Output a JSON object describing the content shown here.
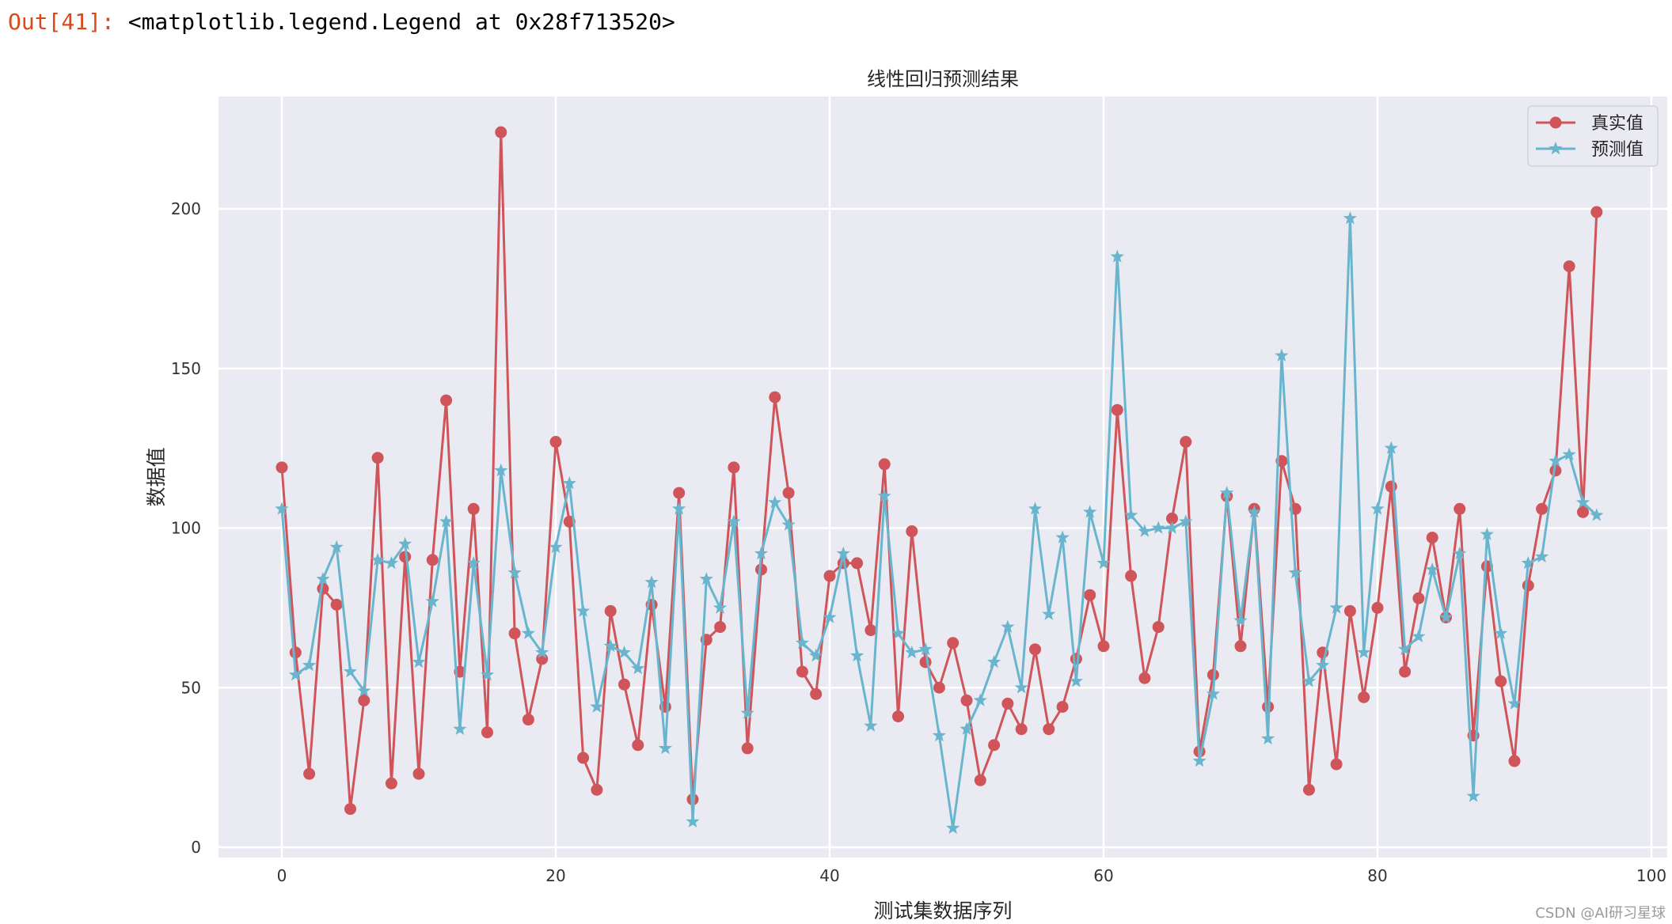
{
  "output": {
    "prompt": "Out[41]:",
    "text": "<matplotlib.legend.Legend at 0x28f713520>"
  },
  "watermark": "CSDN @AI研习星球",
  "chart_data": {
    "type": "line",
    "title": "线性回归预测结果",
    "xlabel": "测试集数据序列",
    "ylabel": "数据值",
    "xlim": [
      -5,
      100
    ],
    "ylim": [
      -5,
      235
    ],
    "x_ticks": [
      0,
      20,
      40,
      60,
      80,
      100
    ],
    "y_ticks": [
      0,
      50,
      100,
      150,
      200
    ],
    "grid": true,
    "legend_position": "top-right",
    "background_color": "#eaeaf2",
    "series": [
      {
        "name": "真实值",
        "color": "#d0555a",
        "marker": "circle",
        "values": [
          119,
          61,
          23,
          81,
          76,
          12,
          46,
          122,
          20,
          91,
          23,
          90,
          140,
          55,
          106,
          36,
          224,
          67,
          40,
          59,
          127,
          102,
          28,
          18,
          74,
          51,
          32,
          76,
          44,
          111,
          15,
          65,
          69,
          119,
          31,
          87,
          141,
          111,
          55,
          48,
          85,
          89,
          89,
          68,
          120,
          41,
          99,
          58,
          50,
          64,
          46,
          21,
          32,
          45,
          37,
          62,
          37,
          44,
          59,
          79,
          63,
          137,
          85,
          53,
          69,
          103,
          127,
          30,
          54,
          110,
          63,
          106,
          44,
          121,
          106,
          18,
          61,
          26,
          74,
          47,
          75,
          113,
          55,
          78,
          97,
          72,
          106,
          35,
          88,
          52,
          27,
          82,
          106,
          118,
          182,
          105,
          199
        ]
      },
      {
        "name": "预测值",
        "color": "#6ab5ce",
        "marker": "star",
        "values": [
          106,
          54,
          57,
          84,
          94,
          55,
          49,
          90,
          89,
          95,
          58,
          77,
          102,
          37,
          89,
          54,
          118,
          86,
          67,
          61,
          94,
          114,
          74,
          44,
          63,
          61,
          56,
          83,
          31,
          106,
          8,
          84,
          75,
          102,
          42,
          92,
          108,
          101,
          64,
          60,
          72,
          92,
          60,
          38,
          110,
          67,
          61,
          62,
          35,
          6,
          37,
          46,
          58,
          69,
          50,
          106,
          73,
          97,
          52,
          105,
          89,
          185,
          104,
          99,
          100,
          100,
          102,
          27,
          48,
          111,
          71,
          105,
          34,
          154,
          86,
          52,
          57,
          75,
          197,
          61,
          106,
          125,
          62,
          66,
          87,
          72,
          92,
          16,
          98,
          67,
          45,
          89,
          91,
          121,
          123,
          108,
          104
        ]
      }
    ]
  }
}
